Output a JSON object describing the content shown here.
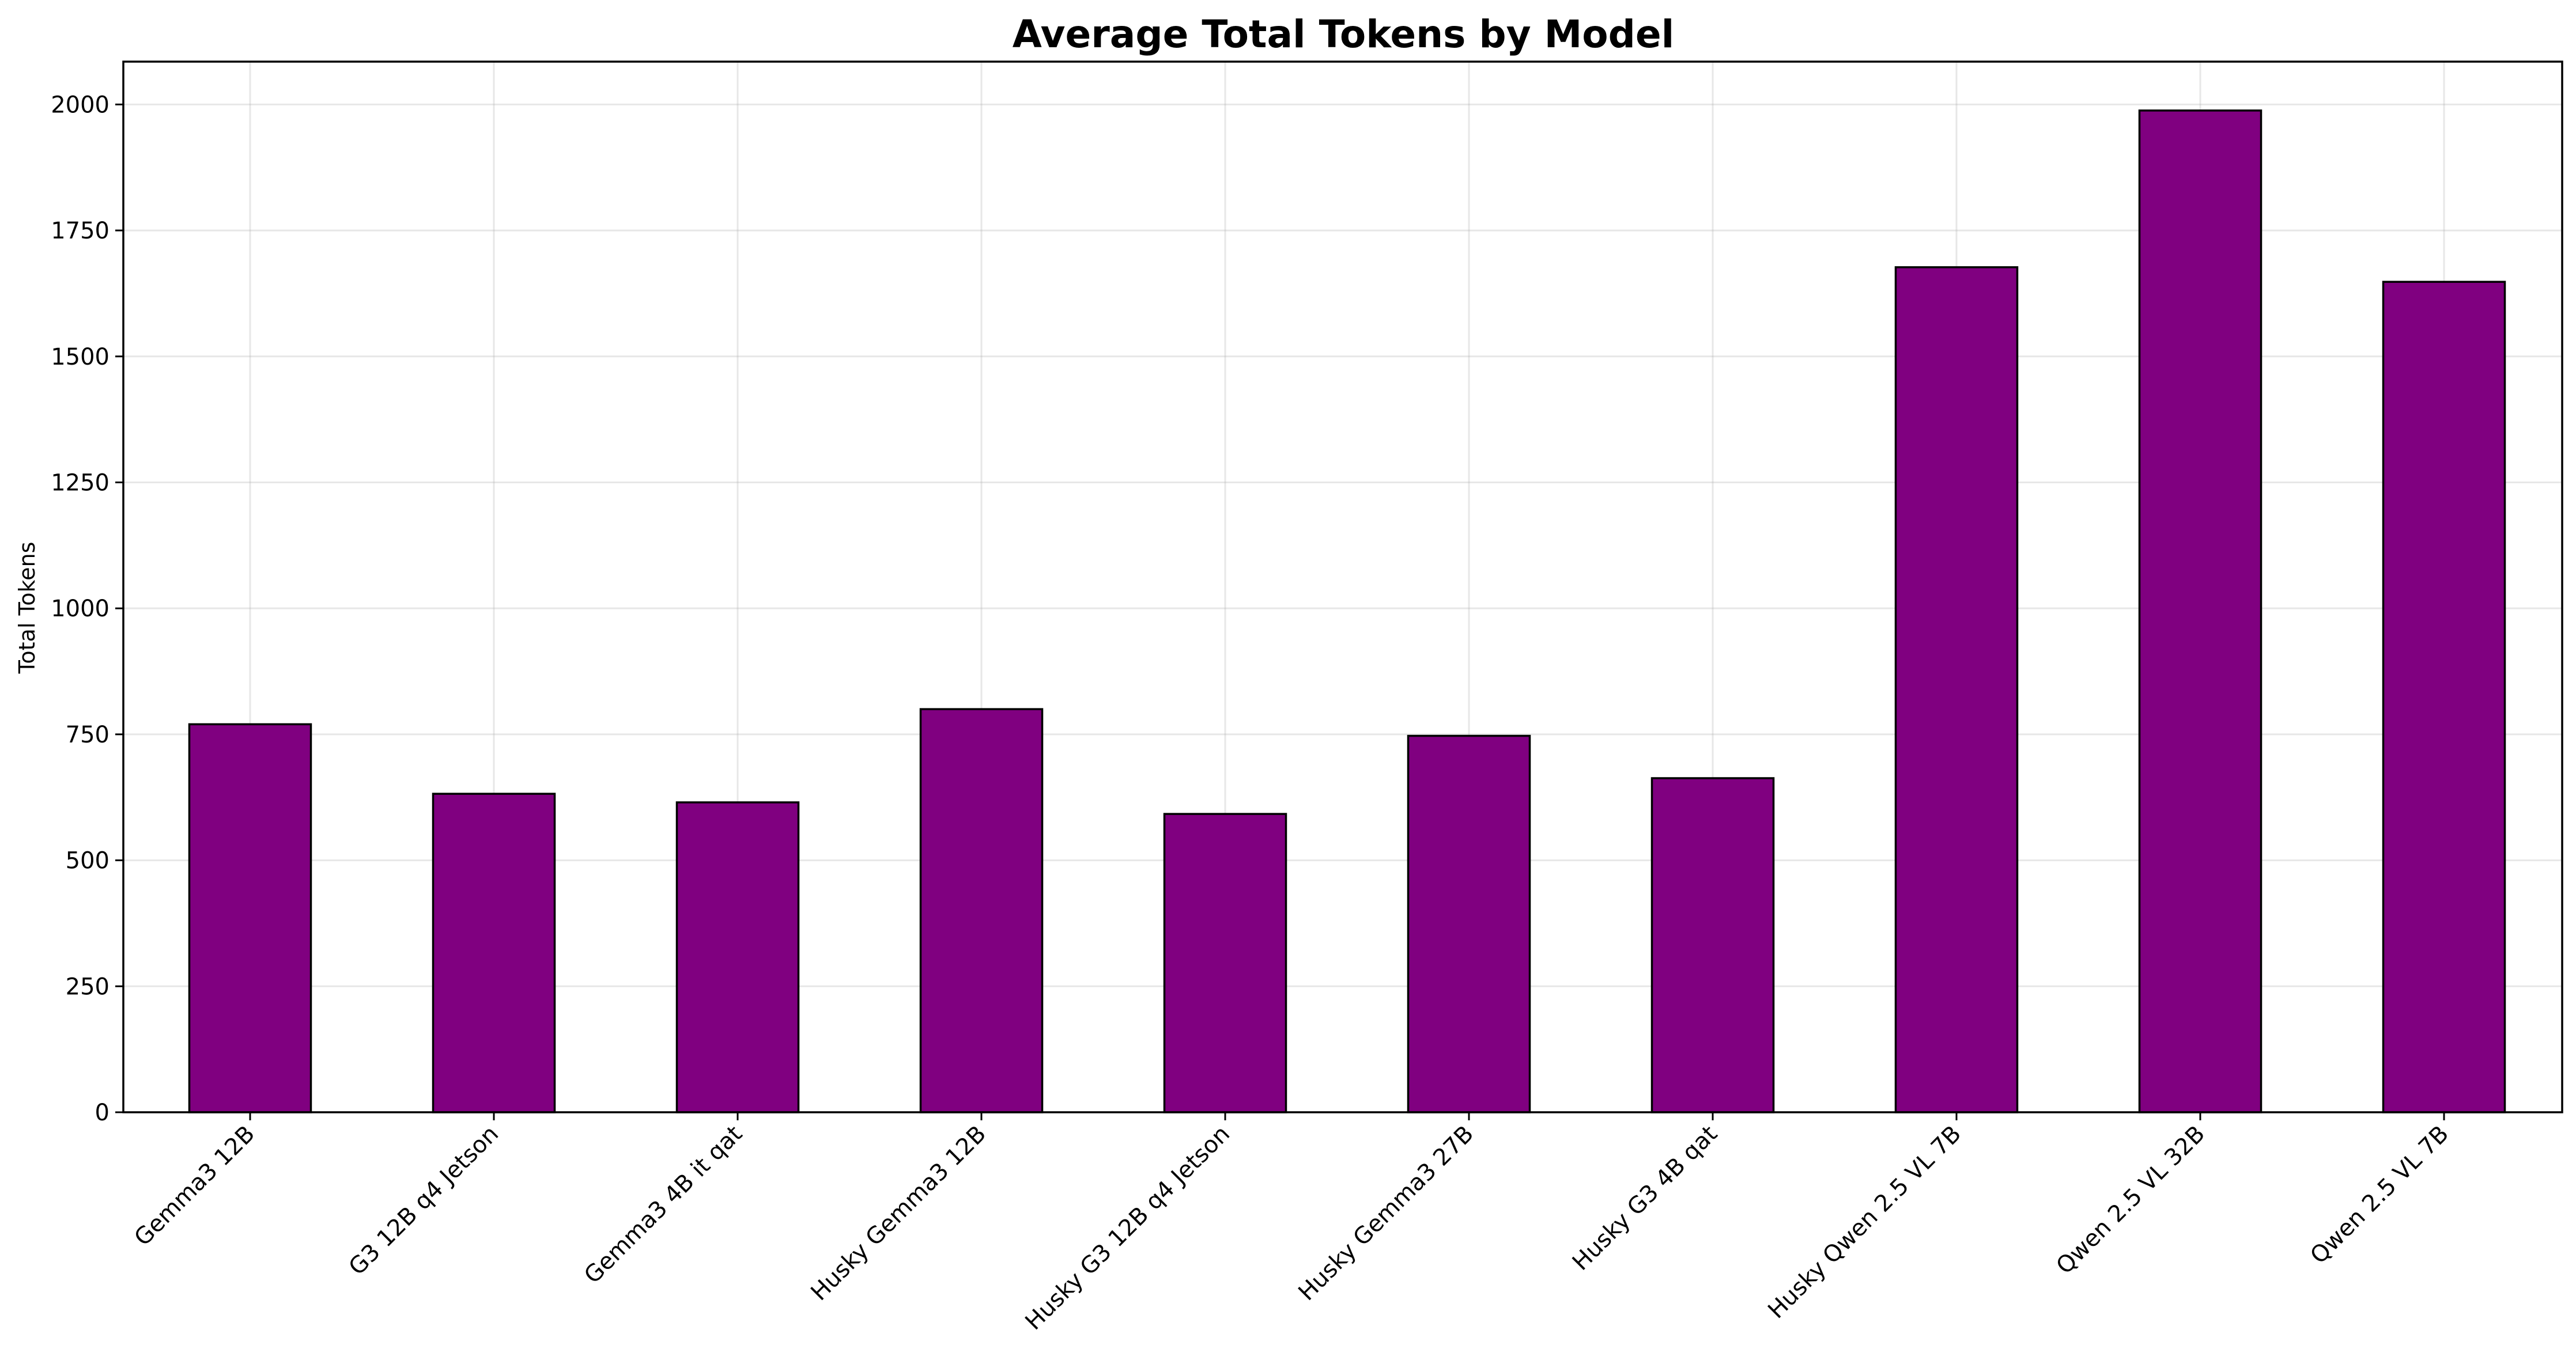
{
  "chart_data": {
    "type": "bar",
    "title": "Average Total Tokens by Model",
    "xlabel": "",
    "ylabel": "Total Tokens",
    "categories": [
      "Gemma3 12B",
      "G3 12B q4 Jetson",
      "Gemma3 4B it qat",
      "Husky Gemma3 12B",
      "Husky G3 12B q4 Jetson",
      "Husky Gemma3 27B",
      "Husky G3 4B qat",
      "Husky Qwen 2.5 VL 7B",
      "Qwen 2.5 VL 32B",
      "Qwen 2.5 VL 7B"
    ],
    "values": [
      770,
      632,
      615,
      800,
      592,
      747,
      663,
      1677,
      1988,
      1648
    ],
    "ylim": [
      0,
      2085
    ],
    "yticks": [
      0,
      250,
      500,
      750,
      1000,
      1250,
      1500,
      1750,
      2000
    ],
    "grid": true,
    "legend": "none",
    "colors": {
      "bar_fill": "#800080",
      "bar_edge": "#000000"
    }
  }
}
